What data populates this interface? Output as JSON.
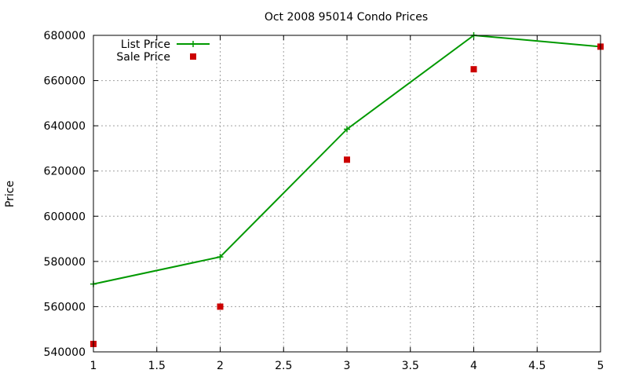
{
  "chart_data": {
    "type": "line",
    "title": "Oct 2008 95014 Condo Prices",
    "xlabel": "",
    "ylabel": "Price",
    "xlim": [
      1,
      5
    ],
    "ylim": [
      540000,
      680000
    ],
    "xticks": [
      "1",
      "1.5",
      "2",
      "2.5",
      "3",
      "3.5",
      "4",
      "4.5",
      "5"
    ],
    "yticks": [
      "540000",
      "560000",
      "580000",
      "600000",
      "620000",
      "640000",
      "660000",
      "680000"
    ],
    "grid": true,
    "legend_position": "top-left",
    "series": [
      {
        "name": "List Price",
        "style": "line-with-plus-markers",
        "color": "#009900",
        "x": [
          1,
          2,
          3,
          4,
          5
        ],
        "values": [
          570000,
          582000,
          638500,
          680000,
          675000
        ]
      },
      {
        "name": "Sale Price",
        "style": "square-markers",
        "color": "#cc0000",
        "x": [
          1,
          2,
          3,
          4,
          5
        ],
        "values": [
          543500,
          560000,
          625000,
          665000,
          675000
        ]
      }
    ]
  }
}
